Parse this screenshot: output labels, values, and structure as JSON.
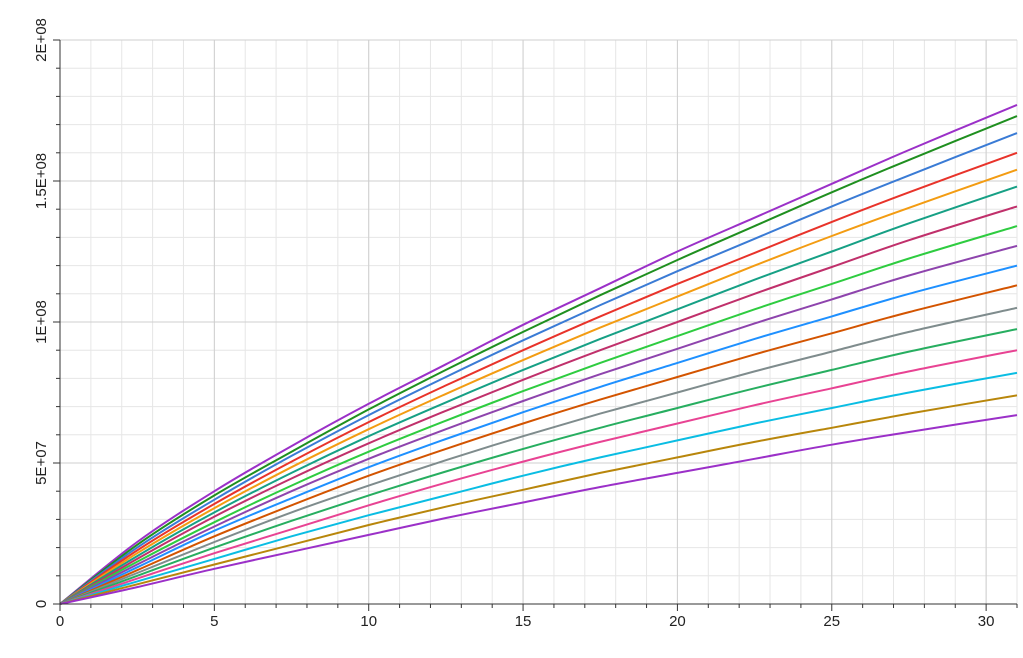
{
  "chart_data": {
    "type": "line",
    "title": "",
    "xlabel": "",
    "ylabel": "",
    "xlim": [
      0,
      31
    ],
    "ylim": [
      0,
      200000000
    ],
    "x_ticks": [
      0,
      5,
      10,
      15,
      20,
      25,
      30
    ],
    "x_tick_labels": [
      "0",
      "5",
      "10",
      "15",
      "20",
      "25",
      "30"
    ],
    "y_ticks": [
      0,
      50000000,
      100000000,
      150000000,
      200000000
    ],
    "y_tick_labels": [
      "0",
      "5E+07",
      "1E+08",
      "1.5E+08",
      "2E+08"
    ],
    "grid": true,
    "legend": "none",
    "x": [
      0,
      2.5,
      5,
      7.5,
      10,
      12.5,
      15,
      17.5,
      20,
      22.5,
      25,
      27.5,
      31
    ],
    "series_shape_note_omitted": true,
    "series": [
      {
        "values": [
          0,
          22000000,
          40000000,
          56000000,
          71000000,
          85000000,
          99000000,
          112000000,
          125000000,
          137000000,
          149000000,
          161000000,
          177000000
        ]
      },
      {
        "values": [
          0,
          21000000,
          38500000,
          54000000,
          69000000,
          83000000,
          96500000,
          109500000,
          122000000,
          134000000,
          146000000,
          157500000,
          173000000
        ]
      },
      {
        "values": [
          0,
          20000000,
          37000000,
          52500000,
          67000000,
          80500000,
          93500000,
          106000000,
          118000000,
          129500000,
          141000000,
          152000000,
          167000000
        ]
      },
      {
        "values": [
          0,
          19000000,
          35500000,
          50500000,
          64500000,
          77500000,
          90000000,
          102000000,
          113500000,
          124500000,
          135500000,
          146000000,
          160000000
        ]
      },
      {
        "values": [
          0,
          18000000,
          34000000,
          48500000,
          62000000,
          74500000,
          86500000,
          98000000,
          109000000,
          120000000,
          130500000,
          140500000,
          154000000
        ]
      },
      {
        "values": [
          0,
          17000000,
          32500000,
          46500000,
          59500000,
          71500000,
          83000000,
          94000000,
          104500000,
          115000000,
          125000000,
          135000000,
          148000000
        ]
      },
      {
        "values": [
          0,
          16000000,
          31000000,
          44500000,
          57000000,
          68500000,
          79500000,
          90000000,
          100000000,
          110000000,
          119500000,
          129000000,
          141000000
        ]
      },
      {
        "values": [
          0,
          15000000,
          29000000,
          42000000,
          54000000,
          65000000,
          75500000,
          85500000,
          95000000,
          104500000,
          113500000,
          122500000,
          134000000
        ]
      },
      {
        "values": [
          0,
          14000000,
          27500000,
          40000000,
          51500000,
          62000000,
          72000000,
          81500000,
          90500000,
          99500000,
          108000000,
          116500000,
          127000000
        ]
      },
      {
        "values": [
          0,
          13000000,
          26000000,
          37500000,
          48500000,
          58500000,
          68000000,
          77000000,
          85500000,
          94000000,
          102000000,
          110000000,
          120000000
        ]
      },
      {
        "values": [
          0,
          12000000,
          24000000,
          35000000,
          45500000,
          55000000,
          64000000,
          72500000,
          80500000,
          88500000,
          96000000,
          103500000,
          113000000
        ]
      },
      {
        "values": [
          0,
          11000000,
          22000000,
          32500000,
          42000000,
          51000000,
          59500000,
          67500000,
          75000000,
          82500000,
          89500000,
          96500000,
          105000000
        ]
      },
      {
        "values": [
          0,
          10000000,
          20000000,
          29500000,
          38500000,
          47000000,
          55000000,
          62500000,
          69500000,
          76500000,
          83000000,
          89500000,
          97500000
        ]
      },
      {
        "values": [
          0,
          9000000,
          18000000,
          26500000,
          35000000,
          43000000,
          50500000,
          57500000,
          64000000,
          70500000,
          76500000,
          82500000,
          90000000
        ]
      },
      {
        "values": [
          0,
          8000000,
          16000000,
          24000000,
          31500000,
          38500000,
          45500000,
          52000000,
          58000000,
          64000000,
          69500000,
          75000000,
          82000000
        ]
      },
      {
        "values": [
          0,
          7000000,
          14000000,
          21000000,
          28000000,
          34500000,
          40500000,
          46500000,
          52000000,
          57500000,
          62500000,
          67500000,
          74000000
        ]
      },
      {
        "values": [
          0,
          6000000,
          12500000,
          18500000,
          24500000,
          30500000,
          36000000,
          41500000,
          46500000,
          51500000,
          56500000,
          61000000,
          67000000
        ]
      }
    ],
    "palette": [
      "#9b30c8",
      "#1f8f1f",
      "#3a7bd5",
      "#e8332a",
      "#f39c12",
      "#16a085",
      "#c0306b",
      "#2ecc40",
      "#8e44ad",
      "#1e90ff",
      "#d35400",
      "#7f8c8d",
      "#27ae60",
      "#e84393",
      "#0abde3",
      "#b8860b"
    ]
  }
}
